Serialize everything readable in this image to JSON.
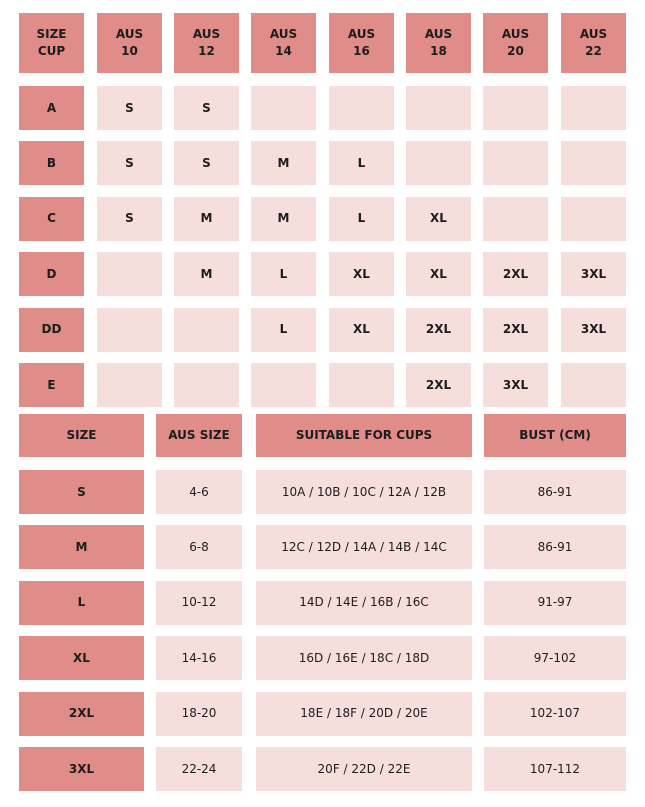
{
  "size_chart": {
    "header": [
      [
        "SIZE",
        "CUP"
      ],
      [
        "AUS",
        "10"
      ],
      [
        "AUS",
        "12"
      ],
      [
        "AUS",
        "14"
      ],
      [
        "AUS",
        "16"
      ],
      [
        "AUS",
        "18"
      ],
      [
        "AUS",
        "20"
      ],
      [
        "AUS",
        "22"
      ]
    ],
    "rows": [
      [
        "A",
        "S",
        "S",
        null,
        null,
        null,
        null,
        null
      ],
      [
        "B",
        "S",
        "S",
        "M",
        "L",
        null,
        null,
        null
      ],
      [
        "C",
        "S",
        "M",
        "M",
        "L",
        "XL",
        null,
        null
      ],
      [
        "D",
        null,
        "M",
        "L",
        "XL",
        "XL",
        "2XL",
        "3XL"
      ],
      [
        "DD",
        null,
        null,
        "L",
        "XL",
        "2XL",
        "2XL",
        "3XL"
      ],
      [
        "E",
        null,
        null,
        null,
        null,
        "2XL",
        "3XL",
        null
      ]
    ]
  },
  "size_guide": {
    "header": [
      "SIZE",
      "AUS SIZE",
      "SUITABLE FOR CUPS",
      "BUST (CM)"
    ],
    "rows": [
      [
        "S",
        "4-6",
        "10A / 10B / 10C / 12A / 12B",
        "86-91"
      ],
      [
        "M",
        "6-8",
        "12C / 12D / 14A / 14B / 14C",
        "86-91"
      ],
      [
        "L",
        "10-12",
        "14D / 14E / 16B / 16C",
        "91-97"
      ],
      [
        "XL",
        "14-16",
        "16D / 16E / 18C / 18D",
        "97-102"
      ],
      [
        "2XL",
        "18-20",
        "18E / 18F / 20D / 20E",
        "102-107"
      ],
      [
        "3XL",
        "22-24",
        "20F / 22D / 22E",
        "107-112"
      ]
    ]
  }
}
